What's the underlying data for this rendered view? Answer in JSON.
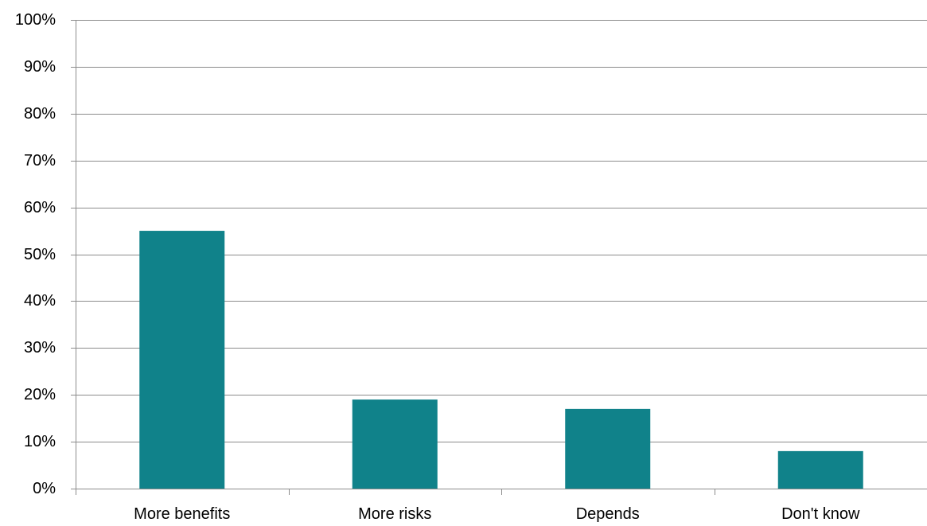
{
  "chart_data": {
    "type": "bar",
    "title": "",
    "xlabel": "",
    "ylabel": "",
    "categories": [
      "More benefits",
      "More risks",
      "Depends",
      "Don't know"
    ],
    "values": [
      55,
      19,
      17,
      8
    ],
    "ylim": [
      0,
      100
    ],
    "yticks": [
      "0%",
      "10%",
      "20%",
      "30%",
      "40%",
      "50%",
      "60%",
      "70%",
      "80%",
      "90%",
      "100%"
    ],
    "grid": true,
    "legend": "none",
    "colors": {
      "bar": "#10828A",
      "grid": "#8C8C8C",
      "axis": "#8C8C8C",
      "text": "#000000"
    }
  }
}
